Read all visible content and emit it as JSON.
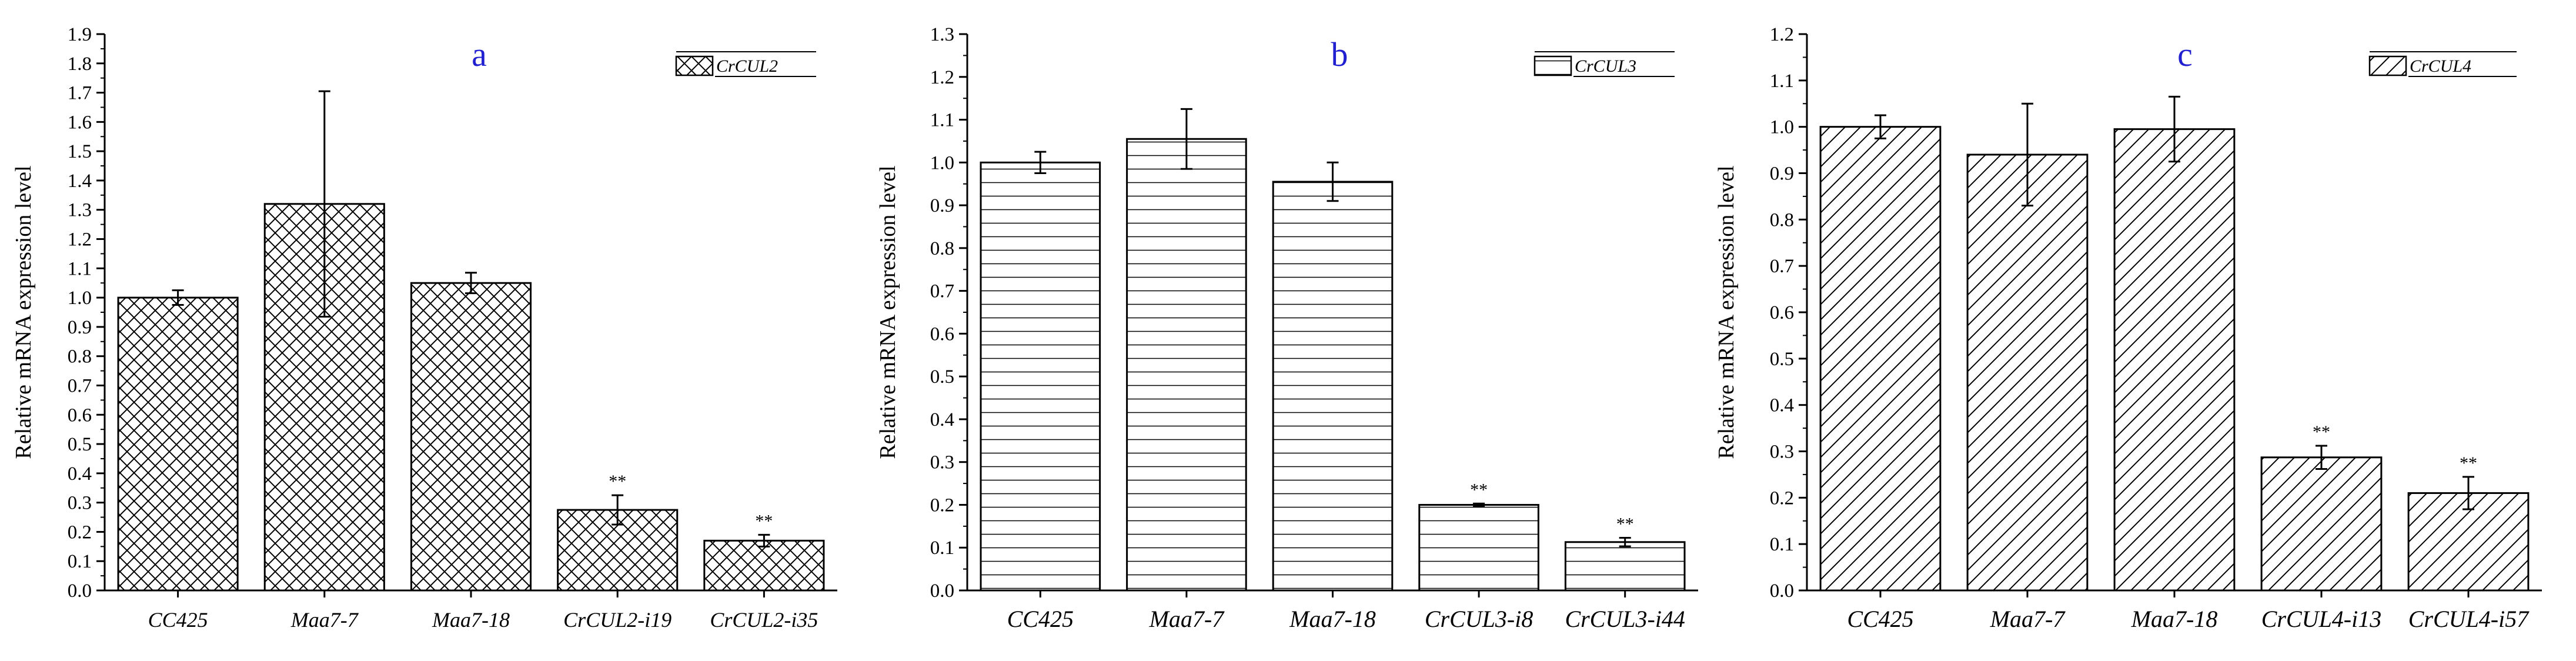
{
  "chart_data": [
    {
      "type": "bar",
      "panel_label": "a",
      "categories": [
        "CC425",
        "Maa7-7",
        "Maa7-18",
        "CrCUL2-i19",
        "CrCUL2-i35"
      ],
      "series": [
        {
          "name": "CrCUL2",
          "values": [
            1.0,
            1.32,
            1.05,
            0.275,
            0.17
          ],
          "errors": [
            0.025,
            0.385,
            0.035,
            0.05,
            0.02
          ],
          "pattern": "crosshatch"
        }
      ],
      "annotations": [
        "",
        "",
        "",
        "**",
        "**"
      ],
      "ylabel": "Relative mRNA expression level",
      "ylim": [
        0,
        1.9
      ],
      "yticks": [
        "0.0",
        "0.1",
        "0.2",
        "0.3",
        "0.4",
        "0.5",
        "0.6",
        "0.7",
        "0.8",
        "0.9",
        "1.0",
        "1.1",
        "1.2",
        "1.3",
        "1.4",
        "1.5",
        "1.6",
        "1.7",
        "1.8",
        "1.9"
      ],
      "legend_position": "top-right"
    },
    {
      "type": "bar",
      "panel_label": "b",
      "categories": [
        "CC425",
        "Maa7-7",
        "Maa7-18",
        "CrCUL3-i8",
        "CrCUL3-i44"
      ],
      "series": [
        {
          "name": "CrCUL3",
          "values": [
            1.0,
            1.055,
            0.955,
            0.2,
            0.113
          ],
          "errors": [
            0.025,
            0.07,
            0.045,
            0.003,
            0.01
          ],
          "pattern": "horizontal-lines"
        }
      ],
      "annotations": [
        "",
        "",
        "",
        "**",
        "**"
      ],
      "ylabel": "Relative mRNA expression level",
      "ylim": [
        0,
        1.3
      ],
      "yticks": [
        "0.0",
        "0.1",
        "0.2",
        "0.3",
        "0.4",
        "0.5",
        "0.6",
        "0.7",
        "0.8",
        "0.9",
        "1.0",
        "1.1",
        "1.2",
        "1.3"
      ],
      "legend_position": "top-right"
    },
    {
      "type": "bar",
      "panel_label": "c",
      "categories": [
        "CC425",
        "Maa7-7",
        "Maa7-18",
        "CrCUL4-i13",
        "CrCUL4-i57"
      ],
      "series": [
        {
          "name": "CrCUL4",
          "values": [
            1.0,
            0.94,
            0.995,
            0.287,
            0.21
          ],
          "errors": [
            0.025,
            0.11,
            0.07,
            0.025,
            0.035
          ],
          "pattern": "diagonal-lines"
        }
      ],
      "annotations": [
        "",
        "",
        "",
        "**",
        "**"
      ],
      "ylabel": "Relative mRNA expression level",
      "ylim": [
        0,
        1.2
      ],
      "yticks": [
        "0.0",
        "0.1",
        "0.2",
        "0.3",
        "0.4",
        "0.5",
        "0.6",
        "0.7",
        "0.8",
        "0.9",
        "1.0",
        "1.1",
        "1.2"
      ],
      "legend_position": "top-right"
    }
  ],
  "colors": {
    "panel_label": "#2020d0",
    "bar_fill": "#ffffff",
    "ink": "#000000"
  }
}
